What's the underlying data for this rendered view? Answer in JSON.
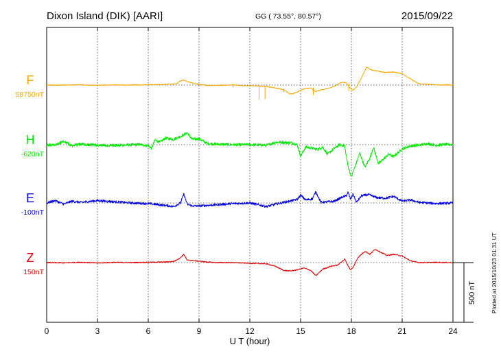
{
  "header": {
    "station": "Dixon Island (DIK)  [AARI]",
    "coords": "GG ( 73.55°,  80.57°)",
    "date": "2015/09/22"
  },
  "footer": {
    "plotted": "Plotted at 2015/10/23 01:31  UT"
  },
  "chart_data": {
    "type": "line",
    "xlabel": "U T (hour)",
    "xlim": [
      0,
      24
    ],
    "x_ticks": [
      "0",
      "3",
      "6",
      "9",
      "12",
      "15",
      "18",
      "21",
      "24"
    ],
    "scale_bar": {
      "label": "500 nT",
      "value": 500
    },
    "series": [
      {
        "name": "F",
        "baseline_label": "58750nT",
        "baseline": 58750,
        "color": "#f5a800",
        "x": [
          0,
          1,
          2,
          3,
          4,
          5,
          6,
          7,
          7.7,
          7.9,
          8.1,
          8.3,
          8.6,
          9,
          9.5,
          10,
          10.5,
          11,
          11.5,
          12,
          12.5,
          12.8,
          13,
          13.5,
          14,
          14.4,
          14.8,
          15.2,
          15.6,
          15.9,
          16.2,
          16.6,
          17,
          17.4,
          17.7,
          17.9,
          18.1,
          18.3,
          18.6,
          18.9,
          19.2,
          19.6,
          20,
          20.5,
          21,
          21.5,
          22,
          23,
          24
        ],
        "values": [
          58750,
          58749,
          58752,
          58748,
          58751,
          58750,
          58752,
          58755,
          58760,
          58785,
          58792,
          58778,
          58768,
          58755,
          58747,
          58747,
          58748,
          58752,
          58745,
          58744,
          58742,
          58737,
          58738,
          58725,
          58710,
          58672,
          58690,
          58720,
          58725,
          58695,
          58710,
          58720,
          58740,
          58772,
          58770,
          58730,
          58706,
          58732,
          58812,
          58900,
          58875,
          58865,
          58855,
          58860,
          58845,
          58800,
          58760,
          58752,
          58750
        ],
        "spikes": [
          {
            "x": 11.0,
            "values": [
              58750,
              58732
            ]
          },
          {
            "x": 12.55,
            "values": [
              58745,
              58630
            ]
          },
          {
            "x": 12.9,
            "values": [
              58742,
              58632
            ]
          },
          {
            "x": 14.0,
            "values": [
              58720,
              58690
            ]
          },
          {
            "x": 15.75,
            "values": [
              58730,
              58665
            ]
          },
          {
            "x": 17.85,
            "values": [
              58760,
              58700
            ]
          }
        ]
      },
      {
        "name": "H",
        "baseline_label": "-620nT",
        "baseline": -620,
        "color": "#00e800",
        "x": [
          0,
          0.5,
          1,
          1.5,
          2,
          3,
          4,
          5,
          5.5,
          6,
          6.2,
          6.4,
          6.7,
          7,
          7.5,
          8,
          8.3,
          8.6,
          9,
          9.5,
          10,
          11,
          12,
          13,
          13.5,
          14,
          14.5,
          14.8,
          15,
          15.3,
          15.7,
          16,
          16.3,
          16.6,
          17,
          17.3,
          17.6,
          17.8,
          18,
          18.2,
          18.5,
          18.8,
          19.1,
          19.3,
          19.6,
          19.9,
          20.2,
          20.5,
          21,
          21.5,
          22,
          22.5,
          23,
          23.5,
          24
        ],
        "values": [
          -620,
          -625,
          -590,
          -630,
          -615,
          -625,
          -625,
          -622,
          -618,
          -630,
          -650,
          -580,
          -600,
          -565,
          -575,
          -545,
          -520,
          -575,
          -570,
          -610,
          -615,
          -620,
          -620,
          -625,
          -600,
          -600,
          -605,
          -620,
          -715,
          -640,
          -650,
          -660,
          -640,
          -700,
          -650,
          -620,
          -630,
          -800,
          -890,
          -810,
          -690,
          -810,
          -730,
          -640,
          -780,
          -740,
          -700,
          -720,
          -655,
          -630,
          -625,
          -610,
          -625,
          -618,
          -620
        ],
        "noise": 12
      },
      {
        "name": "E",
        "baseline_label": "-100nT",
        "baseline": -100,
        "color": "#0000e0",
        "x": [
          0,
          0.5,
          1,
          1.5,
          2,
          3,
          4,
          5,
          6,
          7,
          7.5,
          7.9,
          8.1,
          8.3,
          8.6,
          9,
          10,
          11,
          12,
          12.5,
          13,
          13.5,
          14,
          14.5,
          14.8,
          15,
          15.3,
          15.7,
          15.9,
          16.2,
          16.6,
          17,
          17.4,
          17.7,
          17.8,
          17.95,
          18.1,
          18.3,
          18.6,
          19,
          19.5,
          20,
          20.5,
          21,
          21.5,
          22,
          22.5,
          23,
          24
        ],
        "values": [
          -100,
          -80,
          -110,
          -85,
          -95,
          -80,
          -90,
          -100,
          -105,
          -120,
          -130,
          -100,
          -25,
          -110,
          -125,
          -125,
          -115,
          -105,
          -100,
          -115,
          -130,
          -110,
          -95,
          -80,
          -70,
          -35,
          -75,
          -65,
          -5,
          -95,
          -90,
          -85,
          -55,
          -40,
          -10,
          -70,
          -25,
          -95,
          -40,
          -30,
          -55,
          -60,
          -45,
          -85,
          -75,
          -95,
          -100,
          -105,
          -100
        ],
        "noise": 10
      },
      {
        "name": "Z",
        "baseline_label": "150nT",
        "baseline": 150,
        "color": "#e00000",
        "x": [
          0,
          1,
          2,
          3,
          4,
          5,
          6,
          7,
          7.5,
          7.9,
          8.1,
          8.3,
          8.6,
          9,
          9.5,
          10,
          11,
          12,
          13,
          13.5,
          14,
          14.4,
          14.8,
          15.2,
          15.6,
          15.9,
          16.3,
          16.8,
          17.2,
          17.6,
          17.8,
          17.95,
          18.1,
          18.4,
          18.8,
          19.1,
          19.4,
          19.8,
          20.1,
          20.5,
          21,
          21.5,
          22,
          23,
          24
        ],
        "values": [
          150,
          148,
          153,
          147,
          152,
          150,
          153,
          155,
          160,
          190,
          220,
          170,
          168,
          162,
          155,
          150,
          150,
          145,
          140,
          120,
          85,
          80,
          90,
          105,
          85,
          40,
          95,
          120,
          130,
          180,
          125,
          90,
          110,
          195,
          245,
          220,
          262,
          232,
          210,
          220,
          205,
          165,
          150,
          152,
          150
        ],
        "noise": 4
      }
    ]
  }
}
